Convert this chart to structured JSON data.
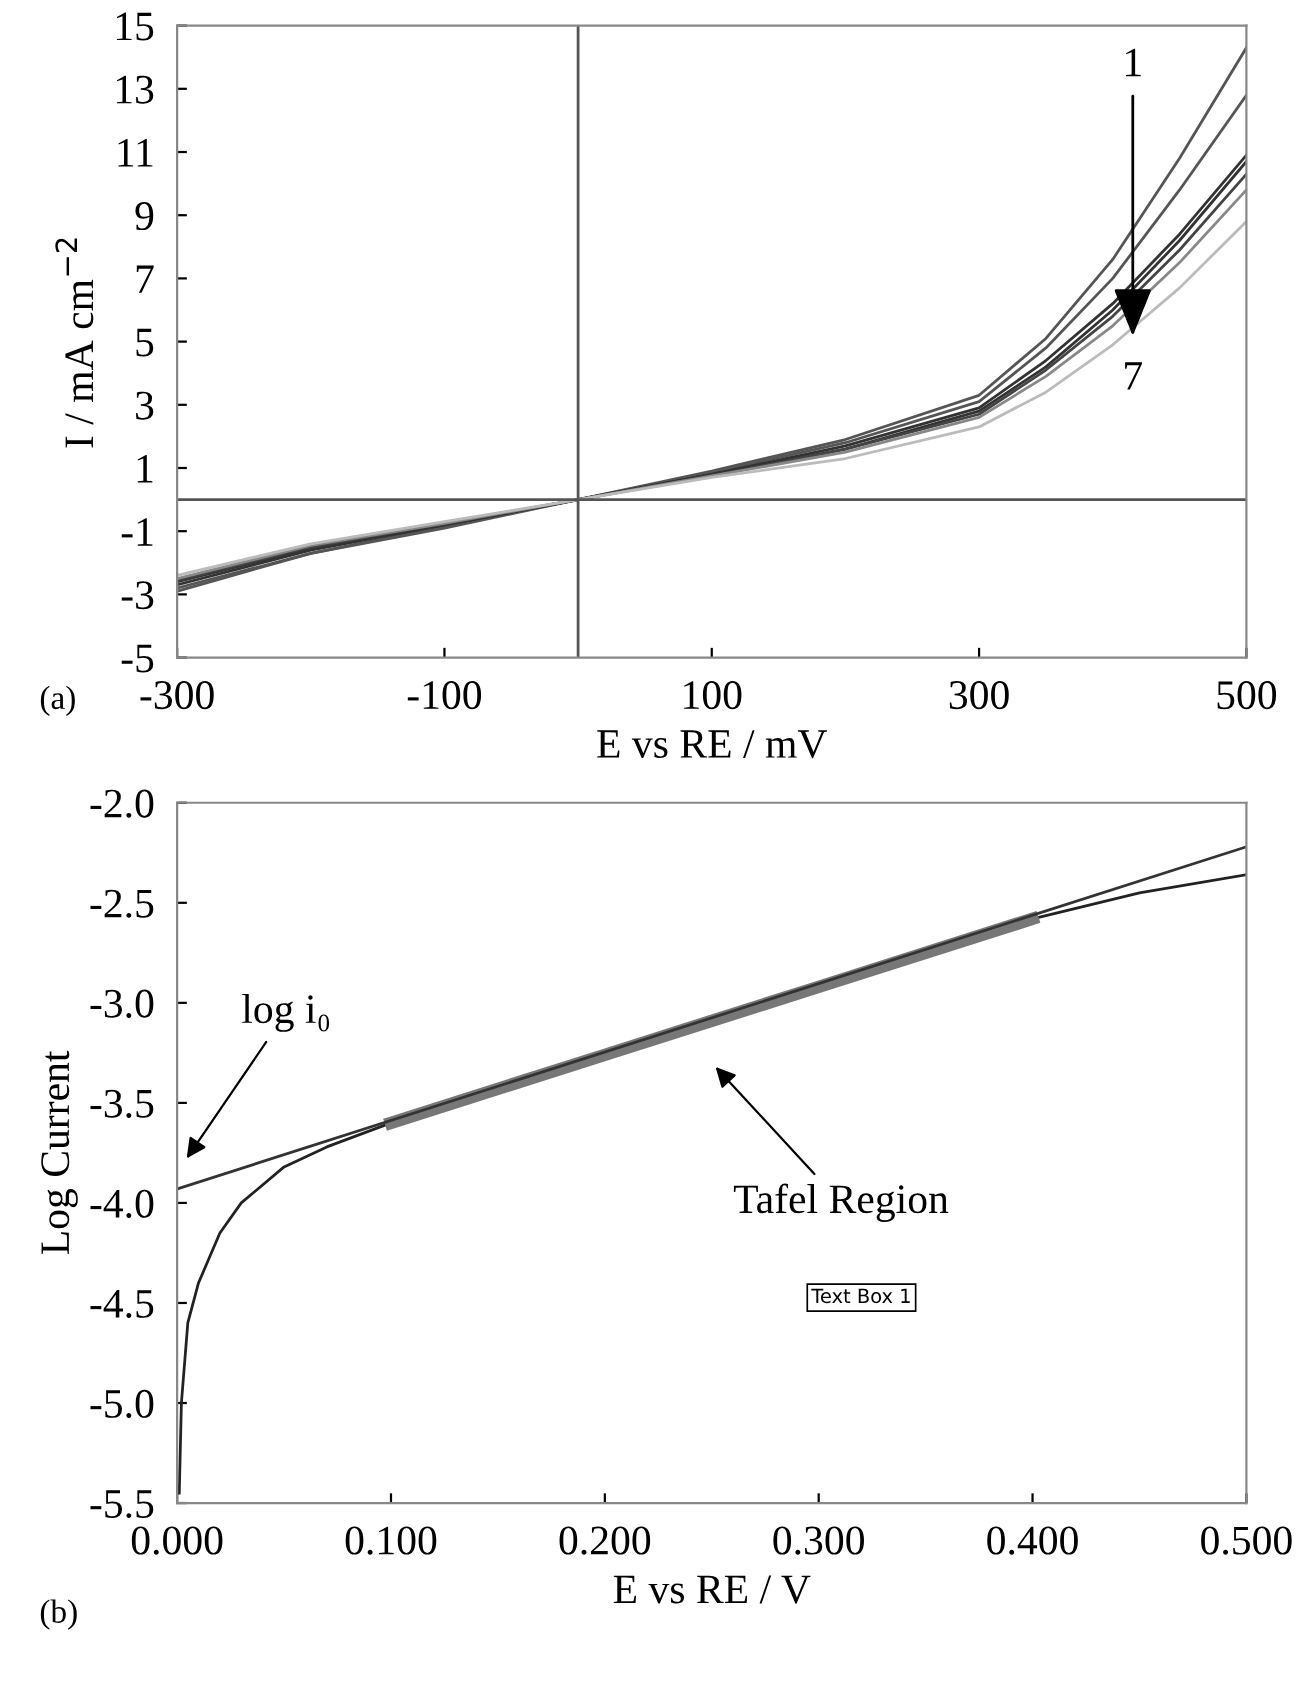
{
  "chart_data": [
    {
      "type": "line",
      "xlabel": "E vs RE / mV",
      "ylabel": "I / mA cm$^{−2}$",
      "x": [
        -300,
        -200,
        -100,
        0,
        100,
        200,
        300,
        350,
        400,
        450,
        500
      ],
      "xlim": [
        -300,
        500
      ],
      "xticks": [
        -300,
        -100,
        100,
        300,
        500
      ],
      "ylim": [
        -5,
        15
      ],
      "yticks": [
        -5,
        -3,
        -1,
        1,
        3,
        5,
        7,
        9,
        11,
        13,
        15
      ],
      "grid": false,
      "legend": false,
      "marker": "none",
      "line_style": "solid",
      "series": [
        {
          "color": "#555555",
          "values": [
            -2.9,
            -1.7,
            -0.9,
            0,
            0.9,
            1.9,
            3.3,
            5.1,
            7.6,
            10.8,
            14.3
          ]
        },
        {
          "color": "#555555",
          "values": [
            -2.8,
            -1.7,
            -0.85,
            0,
            0.85,
            1.8,
            3.1,
            4.8,
            7.0,
            9.8,
            12.8
          ]
        },
        {
          "color": "#333333",
          "values": [
            -2.7,
            -1.6,
            -0.8,
            0,
            0.8,
            1.7,
            2.9,
            4.4,
            6.2,
            8.4,
            10.9
          ]
        },
        {
          "color": "#333333",
          "values": [
            -2.6,
            -1.55,
            -0.8,
            0,
            0.8,
            1.6,
            2.8,
            4.2,
            6.0,
            8.2,
            10.7
          ]
        },
        {
          "color": "#444444",
          "values": [
            -2.55,
            -1.5,
            -0.75,
            0,
            0.75,
            1.6,
            2.7,
            4.1,
            5.8,
            7.9,
            10.3
          ]
        },
        {
          "color": "#888888",
          "values": [
            -2.5,
            -1.45,
            -0.75,
            0,
            0.75,
            1.5,
            2.6,
            3.9,
            5.5,
            7.5,
            9.8
          ]
        },
        {
          "color": "#bbbbbb",
          "values": [
            -2.4,
            -1.4,
            -0.7,
            0,
            0.7,
            1.3,
            2.3,
            3.4,
            4.9,
            6.7,
            8.8
          ]
        }
      ],
      "annotations": [
        {
          "text": "1",
          "x": 415,
          "y": 5.0
        },
        "7",
        "(a)"
      ]
    },
    {
      "type": "line",
      "xlabel": "E vs RE / V",
      "ylabel": "Log Current",
      "xlim": [
        0,
        0.5
      ],
      "xticks": [
        {
          "value": 0,
          "label": "0.000"
        },
        {
          "value": 0.1,
          "label": "0.100"
        },
        {
          "value": 0.2,
          "label": "0.200"
        },
        {
          "value": 0.3,
          "label": "0.300"
        },
        {
          "value": 0.4,
          "label": "0.400"
        },
        {
          "value": 0.5,
          "label": "0.500"
        }
      ],
      "ylim": [
        -5.5,
        -2.0
      ],
      "yticks": [
        {
          "value": -5.5,
          "label": "-5.5"
        },
        {
          "value": -5.0,
          "label": "-5.0"
        },
        {
          "value": -4.5,
          "label": "-4.5"
        },
        {
          "value": -4.0,
          "label": "-4.0"
        },
        {
          "value": -3.5,
          "label": "-3.5"
        },
        {
          "value": -3.0,
          "label": "-3.0"
        },
        {
          "value": -2.5,
          "label": "-2.5"
        },
        {
          "value": -2.0,
          "label": "-2.0"
        }
      ],
      "grid": false,
      "legend": false,
      "marker": "none",
      "line_style": "solid",
      "series": [
        {
          "color": "#222222",
          "x": [
            0.001,
            0.002,
            0.005,
            0.01,
            0.02,
            0.03,
            0.05,
            0.07,
            0.1,
            0.2,
            0.3,
            0.4,
            0.45,
            0.5
          ],
          "values": [
            -5.45,
            -5.0,
            -4.6,
            -4.4,
            -4.15,
            -4.0,
            -3.82,
            -3.72,
            -3.6,
            -3.28,
            -2.93,
            -2.58,
            -2.45,
            -2.36
          ]
        },
        {
          "color": "#777777",
          "x": [
            0.1,
            0.2,
            0.3,
            0.4
          ],
          "values": [
            -3.6,
            -3.26,
            -2.92,
            -2.58
          ]
        },
        {
          "color": "#333333",
          "x": [
            0,
            0.5
          ],
          "values": [
            -3.93,
            -2.22
          ]
        }
      ],
      "annotations": [
        "log i₀",
        "Tafel Region",
        "Text Box 1",
        "(b)"
      ]
    }
  ]
}
